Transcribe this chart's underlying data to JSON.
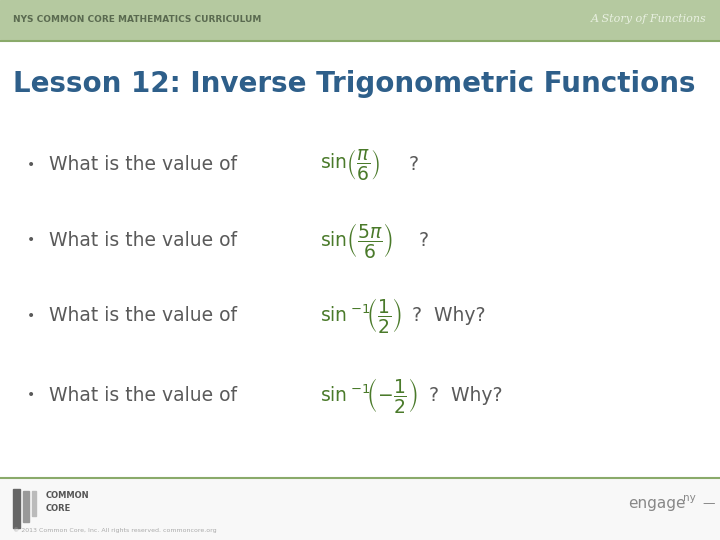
{
  "bg_color": "#ffffff",
  "header_bg_color": "#b5c9a0",
  "header_text_left": "NYS COMMON CORE MATHEMATICS CURRICULUM",
  "header_text_right": "A Story of Functions",
  "divider_color": "#8aaa6a",
  "title_text": "Lesson 12: Inverse Trigonometric Functions",
  "title_color": "#2e5f8a",
  "bullet_color": "#5a5a5a",
  "math_color": "#4a7a2a",
  "footer_divider_color": "#8aaa6a",
  "engageny_color": "#888888",
  "header_left_color": "#5a6a50",
  "header_right_color": "#e8f0e0"
}
